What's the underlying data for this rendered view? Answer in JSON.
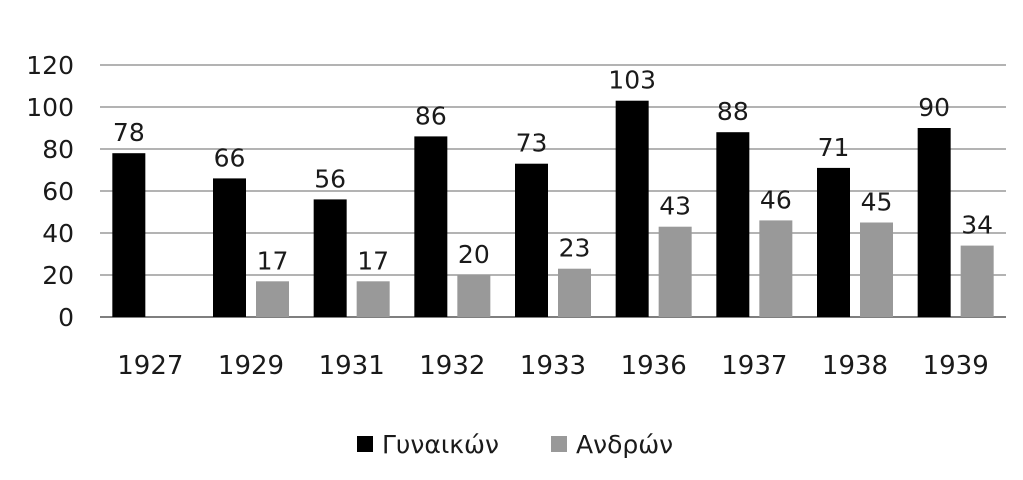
{
  "chart_data": {
    "type": "bar",
    "categories": [
      "1927",
      "1929",
      "1931",
      "1932",
      "1933",
      "1936",
      "1937",
      "1938",
      "1939"
    ],
    "series": [
      {
        "name": "Γυναικών",
        "color": "#000000",
        "values": [
          78,
          66,
          56,
          86,
          73,
          103,
          88,
          71,
          90
        ]
      },
      {
        "name": "Ανδρών",
        "color": "#999999",
        "values": [
          null,
          17,
          17,
          20,
          23,
          43,
          46,
          45,
          34
        ]
      }
    ],
    "yticks": [
      "0",
      "20",
      "40",
      "60",
      "80",
      "100",
      "120"
    ],
    "ylim": [
      0,
      120
    ],
    "grid": true,
    "legend_position": "bottom"
  }
}
